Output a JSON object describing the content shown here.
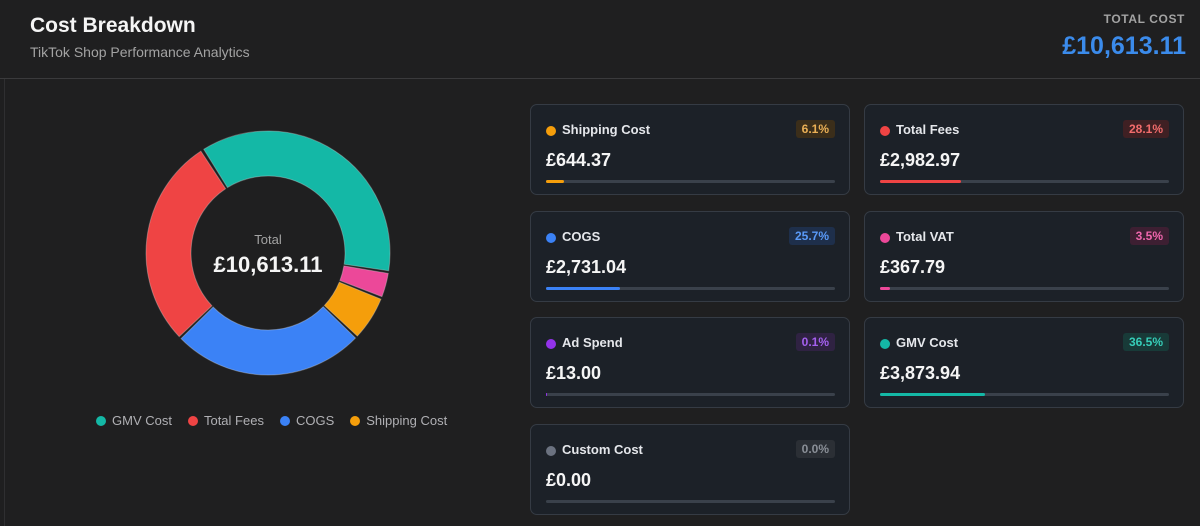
{
  "header": {
    "title": "Cost Breakdown",
    "subtitle": "TikTok Shop Performance Analytics",
    "total_label": "TOTAL COST",
    "total_value": "£10,613.11"
  },
  "donut": {
    "center_label": "Total",
    "center_value": "£10,613.11"
  },
  "legend": [
    {
      "label": "GMV Cost",
      "color": "#14b8a6"
    },
    {
      "label": "Total Fees",
      "color": "#ef4444"
    },
    {
      "label": "COGS",
      "color": "#3b82f6"
    },
    {
      "label": "Shipping Cost",
      "color": "#f59e0b"
    }
  ],
  "cards": [
    {
      "name": "Shipping Cost",
      "amount": "£644.37",
      "percent": "6.1%",
      "fraction": 0.061,
      "color": "#f59e0b",
      "badge_bg": "#3b2e1a",
      "badge_fg": "#eab056"
    },
    {
      "name": "Total Fees",
      "amount": "£2,982.97",
      "percent": "28.1%",
      "fraction": 0.281,
      "color": "#ef4444",
      "badge_bg": "#3f2023",
      "badge_fg": "#f26c6c"
    },
    {
      "name": "COGS",
      "amount": "£2,731.04",
      "percent": "25.7%",
      "fraction": 0.257,
      "color": "#3b82f6",
      "badge_bg": "#1e2f4b",
      "badge_fg": "#5a9af8"
    },
    {
      "name": "Total VAT",
      "amount": "£367.79",
      "percent": "3.5%",
      "fraction": 0.035,
      "color": "#ec4899",
      "badge_bg": "#3d1f32",
      "badge_fg": "#ee66ac"
    },
    {
      "name": "Ad Spend",
      "amount": "£13.00",
      "percent": "0.1%",
      "fraction": 0.001,
      "color": "#9333ea",
      "badge_bg": "#2f2242",
      "badge_fg": "#a460ee"
    },
    {
      "name": "GMV Cost",
      "amount": "£3,873.94",
      "percent": "36.5%",
      "fraction": 0.365,
      "color": "#14b8a6",
      "badge_bg": "#183a38",
      "badge_fg": "#36cdb8"
    },
    {
      "name": "Custom Cost",
      "amount": "£0.00",
      "percent": "0.0%",
      "fraction": 0.0,
      "color": "#6b7280",
      "badge_bg": "#2b2f35",
      "badge_fg": "#8a8f97"
    }
  ]
}
